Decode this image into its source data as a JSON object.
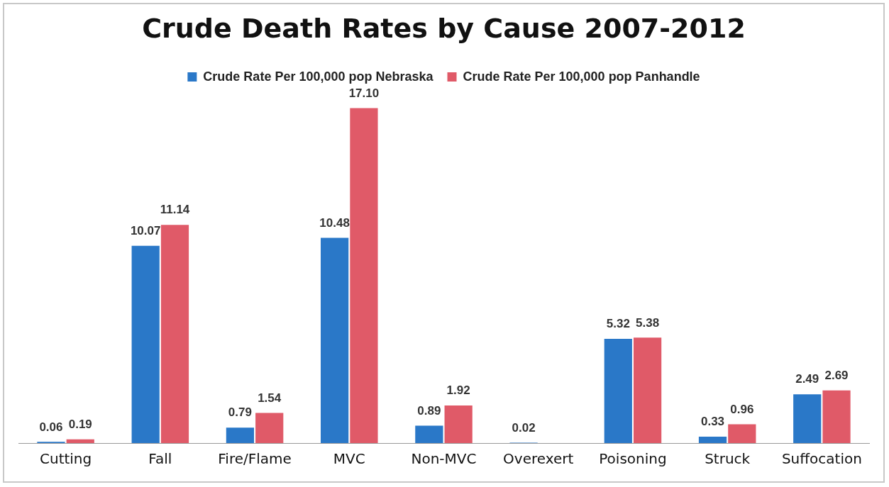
{
  "chart_data": {
    "type": "bar",
    "title": "Crude Death Rates by Cause 2007-2012",
    "categories": [
      "Cutting",
      "Fall",
      "Fire/Flame",
      "MVC",
      "Non-MVC",
      "Overexert",
      "Poisoning",
      "Struck",
      "Suffocation"
    ],
    "series": [
      {
        "name": "Crude Rate Per 100,000 pop Nebraska",
        "color": "#2a78c8",
        "values": [
          0.06,
          10.07,
          0.79,
          10.48,
          0.89,
          0.02,
          5.32,
          0.33,
          2.49
        ],
        "value_labels": [
          "0.06",
          "10.07",
          "0.79",
          "10.48",
          "0.89",
          "0.02",
          "5.32",
          "0.33",
          "2.49"
        ]
      },
      {
        "name": "Crude Rate Per 100,000 pop Panhandle",
        "color": "#e05a68",
        "values": [
          0.19,
          11.14,
          1.54,
          17.1,
          1.92,
          null,
          5.38,
          0.96,
          2.69
        ],
        "value_labels": [
          "0.19",
          "11.14",
          "1.54",
          "17.10",
          "1.92",
          null,
          "5.38",
          "0.96",
          "2.69"
        ]
      }
    ],
    "legend": "top",
    "grid": false,
    "tick_labels": "x"
  }
}
